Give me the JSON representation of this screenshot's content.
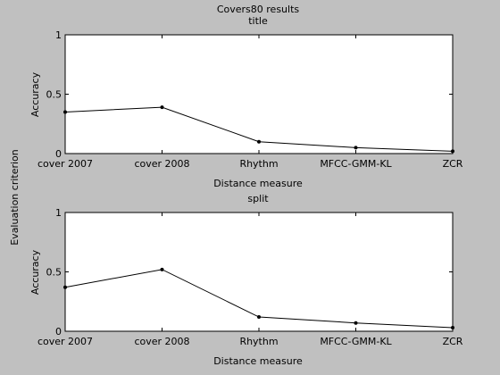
{
  "suptitle": "Covers80 results",
  "side_label": "Evaluation criterion",
  "colors": {
    "figure_bg": "#c0c0c0",
    "axes_bg": "#ffffff",
    "line": "#000000"
  },
  "chart_data": [
    {
      "type": "line",
      "title": "title",
      "xlabel": "Distance measure",
      "ylabel": "Accuracy",
      "categories": [
        "cover 2007",
        "cover 2008",
        "Rhythm",
        "MFCC-GMM-KL",
        "ZCR"
      ],
      "values": [
        0.35,
        0.39,
        0.1,
        0.05,
        0.02
      ],
      "ylim": [
        0,
        1
      ],
      "yticks": [
        0,
        0.5,
        1
      ],
      "ytick_labels": [
        "0",
        "0.5",
        "1"
      ],
      "grid": false,
      "marker": "dot"
    },
    {
      "type": "line",
      "title": "split",
      "xlabel": "Distance measure",
      "ylabel": "Accuracy",
      "categories": [
        "cover 2007",
        "cover 2008",
        "Rhythm",
        "MFCC-GMM-KL",
        "ZCR"
      ],
      "values": [
        0.37,
        0.52,
        0.12,
        0.07,
        0.03
      ],
      "ylim": [
        0,
        1
      ],
      "yticks": [
        0,
        0.5,
        1
      ],
      "ytick_labels": [
        "0",
        "0.5",
        "1"
      ],
      "grid": false,
      "marker": "dot"
    }
  ]
}
